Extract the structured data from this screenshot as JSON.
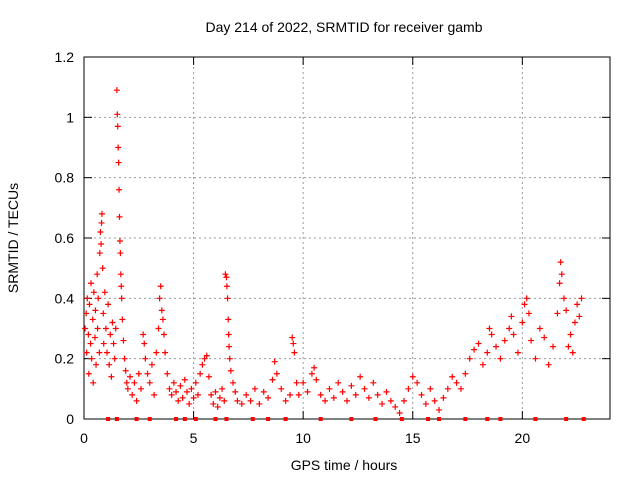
{
  "chart_data": {
    "type": "scatter",
    "title": "Day 214 of 2022, SRMTID for receiver gamb",
    "xlabel": "GPS time / hours",
    "ylabel": "SRMTID / TECUs",
    "xlim": [
      0,
      24
    ],
    "ylim": [
      0,
      1.2
    ],
    "xticks": [
      0,
      5,
      10,
      15,
      20
    ],
    "yticks": [
      0,
      0.2,
      0.4,
      0.6,
      0.8,
      1,
      1.2
    ],
    "ytick_labels": [
      "0",
      "0.2",
      "0.4",
      "0.6",
      "0.8",
      "1",
      "1.2"
    ],
    "grid": true,
    "marker": "+",
    "color": "#ff0000",
    "series": [
      {
        "name": "SRMTID",
        "points": [
          [
            0.05,
            0.3
          ],
          [
            0.1,
            0.35
          ],
          [
            0.12,
            0.22
          ],
          [
            0.15,
            0.4
          ],
          [
            0.2,
            0.28
          ],
          [
            0.22,
            0.15
          ],
          [
            0.25,
            0.38
          ],
          [
            0.3,
            0.25
          ],
          [
            0.32,
            0.45
          ],
          [
            0.35,
            0.2
          ],
          [
            0.4,
            0.33
          ],
          [
            0.42,
            0.12
          ],
          [
            0.45,
            0.42
          ],
          [
            0.5,
            0.27
          ],
          [
            0.52,
            0.36
          ],
          [
            0.55,
            0.18
          ],
          [
            0.6,
            0.48
          ],
          [
            0.62,
            0.3
          ],
          [
            0.65,
            0.4
          ],
          [
            0.7,
            0.22
          ],
          [
            0.72,
            0.55
          ],
          [
            0.75,
            0.62
          ],
          [
            0.78,
            0.58
          ],
          [
            0.8,
            0.65
          ],
          [
            0.82,
            0.68
          ],
          [
            0.85,
            0.5
          ],
          [
            0.88,
            0.35
          ],
          [
            0.9,
            0.25
          ],
          [
            0.95,
            0.42
          ],
          [
            1.0,
            0.3
          ],
          [
            1.05,
            0.22
          ],
          [
            1.1,
            0.38
          ],
          [
            1.15,
            0.18
          ],
          [
            1.2,
            0.28
          ],
          [
            1.25,
            0.14
          ],
          [
            1.3,
            0.32
          ],
          [
            1.35,
            0.25
          ],
          [
            1.4,
            0.2
          ],
          [
            1.45,
            0.3
          ],
          [
            1.5,
            1.09
          ],
          [
            1.52,
            1.01
          ],
          [
            1.54,
            0.97
          ],
          [
            1.56,
            0.9
          ],
          [
            1.58,
            0.85
          ],
          [
            1.6,
            0.76
          ],
          [
            1.62,
            0.67
          ],
          [
            1.64,
            0.59
          ],
          [
            1.66,
            0.55
          ],
          [
            1.68,
            0.48
          ],
          [
            1.7,
            0.44
          ],
          [
            1.72,
            0.4
          ],
          [
            1.75,
            0.33
          ],
          [
            1.8,
            0.26
          ],
          [
            1.85,
            0.2
          ],
          [
            1.9,
            0.16
          ],
          [
            1.95,
            0.12
          ],
          [
            2.0,
            0.1
          ],
          [
            2.1,
            0.14
          ],
          [
            2.2,
            0.08
          ],
          [
            2.3,
            0.12
          ],
          [
            2.4,
            0.06
          ],
          [
            2.5,
            0.15
          ],
          [
            2.6,
            0.1
          ],
          [
            2.7,
            0.28
          ],
          [
            2.75,
            0.25
          ],
          [
            2.8,
            0.2
          ],
          [
            2.9,
            0.15
          ],
          [
            3.0,
            0.12
          ],
          [
            3.1,
            0.18
          ],
          [
            3.2,
            0.08
          ],
          [
            3.3,
            0.22
          ],
          [
            3.4,
            0.3
          ],
          [
            3.45,
            0.4
          ],
          [
            3.5,
            0.44
          ],
          [
            3.55,
            0.36
          ],
          [
            3.6,
            0.33
          ],
          [
            3.65,
            0.28
          ],
          [
            3.7,
            0.22
          ],
          [
            3.8,
            0.15
          ],
          [
            3.9,
            0.1
          ],
          [
            4.0,
            0.08
          ],
          [
            4.1,
            0.12
          ],
          [
            4.2,
            0.09
          ],
          [
            4.3,
            0.06
          ],
          [
            4.4,
            0.11
          ],
          [
            4.5,
            0.07
          ],
          [
            4.6,
            0.13
          ],
          [
            4.7,
            0.09
          ],
          [
            4.8,
            0.05
          ],
          [
            4.9,
            0.1
          ],
          [
            5.0,
            0.07
          ],
          [
            5.1,
            0.12
          ],
          [
            5.2,
            0.08
          ],
          [
            5.3,
            0.15
          ],
          [
            5.4,
            0.18
          ],
          [
            5.5,
            0.2
          ],
          [
            5.6,
            0.21
          ],
          [
            5.7,
            0.14
          ],
          [
            5.8,
            0.08
          ],
          [
            5.9,
            0.05
          ],
          [
            6.0,
            0.09
          ],
          [
            6.1,
            0.04
          ],
          [
            6.2,
            0.07
          ],
          [
            6.3,
            0.1
          ],
          [
            6.4,
            0.06
          ],
          [
            6.45,
            0.48
          ],
          [
            6.5,
            0.47
          ],
          [
            6.52,
            0.44
          ],
          [
            6.55,
            0.4
          ],
          [
            6.58,
            0.33
          ],
          [
            6.6,
            0.28
          ],
          [
            6.62,
            0.24
          ],
          [
            6.65,
            0.2
          ],
          [
            6.7,
            0.16
          ],
          [
            6.8,
            0.12
          ],
          [
            6.9,
            0.09
          ],
          [
            7.0,
            0.06
          ],
          [
            7.2,
            0.05
          ],
          [
            7.4,
            0.08
          ],
          [
            7.6,
            0.06
          ],
          [
            7.8,
            0.1
          ],
          [
            8.0,
            0.05
          ],
          [
            8.2,
            0.09
          ],
          [
            8.4,
            0.07
          ],
          [
            8.6,
            0.13
          ],
          [
            8.7,
            0.19
          ],
          [
            8.8,
            0.15
          ],
          [
            9.0,
            0.1
          ],
          [
            9.2,
            0.06
          ],
          [
            9.4,
            0.08
          ],
          [
            9.5,
            0.27
          ],
          [
            9.55,
            0.25
          ],
          [
            9.6,
            0.22
          ],
          [
            9.7,
            0.12
          ],
          [
            9.8,
            0.08
          ],
          [
            10.0,
            0.12
          ],
          [
            10.2,
            0.09
          ],
          [
            10.4,
            0.15
          ],
          [
            10.5,
            0.17
          ],
          [
            10.6,
            0.13
          ],
          [
            10.8,
            0.08
          ],
          [
            11.0,
            0.06
          ],
          [
            11.2,
            0.1
          ],
          [
            11.4,
            0.07
          ],
          [
            11.6,
            0.12
          ],
          [
            11.8,
            0.09
          ],
          [
            12.0,
            0.06
          ],
          [
            12.2,
            0.11
          ],
          [
            12.4,
            0.08
          ],
          [
            12.6,
            0.14
          ],
          [
            12.8,
            0.1
          ],
          [
            13.0,
            0.07
          ],
          [
            13.2,
            0.12
          ],
          [
            13.4,
            0.08
          ],
          [
            13.6,
            0.05
          ],
          [
            13.8,
            0.09
          ],
          [
            14.0,
            0.06
          ],
          [
            14.2,
            0.04
          ],
          [
            14.4,
            0.02
          ],
          [
            14.6,
            0.06
          ],
          [
            14.8,
            0.1
          ],
          [
            15.0,
            0.14
          ],
          [
            15.2,
            0.12
          ],
          [
            15.4,
            0.08
          ],
          [
            15.6,
            0.05
          ],
          [
            15.8,
            0.1
          ],
          [
            16.0,
            0.06
          ],
          [
            16.2,
            0.03
          ],
          [
            16.4,
            0.07
          ],
          [
            16.6,
            0.1
          ],
          [
            16.8,
            0.14
          ],
          [
            17.0,
            0.12
          ],
          [
            17.2,
            0.1
          ],
          [
            17.4,
            0.15
          ],
          [
            17.6,
            0.2
          ],
          [
            17.8,
            0.23
          ],
          [
            18.0,
            0.25
          ],
          [
            18.2,
            0.18
          ],
          [
            18.4,
            0.22
          ],
          [
            18.5,
            0.3
          ],
          [
            18.6,
            0.28
          ],
          [
            18.8,
            0.24
          ],
          [
            19.0,
            0.2
          ],
          [
            19.2,
            0.26
          ],
          [
            19.4,
            0.3
          ],
          [
            19.5,
            0.34
          ],
          [
            19.6,
            0.28
          ],
          [
            19.8,
            0.22
          ],
          [
            20.0,
            0.32
          ],
          [
            20.1,
            0.38
          ],
          [
            20.2,
            0.4
          ],
          [
            20.3,
            0.35
          ],
          [
            20.4,
            0.26
          ],
          [
            20.6,
            0.2
          ],
          [
            20.8,
            0.3
          ],
          [
            21.0,
            0.27
          ],
          [
            21.2,
            0.18
          ],
          [
            21.4,
            0.24
          ],
          [
            21.6,
            0.35
          ],
          [
            21.7,
            0.45
          ],
          [
            21.75,
            0.52
          ],
          [
            21.8,
            0.48
          ],
          [
            21.9,
            0.4
          ],
          [
            22.0,
            0.36
          ],
          [
            22.1,
            0.24
          ],
          [
            22.2,
            0.28
          ],
          [
            22.3,
            0.22
          ],
          [
            22.4,
            0.32
          ],
          [
            22.5,
            0.38
          ],
          [
            22.6,
            0.34
          ],
          [
            22.7,
            0.4
          ]
        ],
        "zero_markers": [
          1.1,
          1.5,
          2.4,
          3.0,
          4.2,
          4.6,
          5.1,
          6.0,
          6.5,
          7.7,
          8.4,
          9.2,
          10.8,
          12.2,
          13.3,
          14.5,
          15.7,
          16.2,
          17.4,
          18.4,
          19.0,
          20.6,
          22.0,
          22.8
        ]
      }
    ]
  }
}
